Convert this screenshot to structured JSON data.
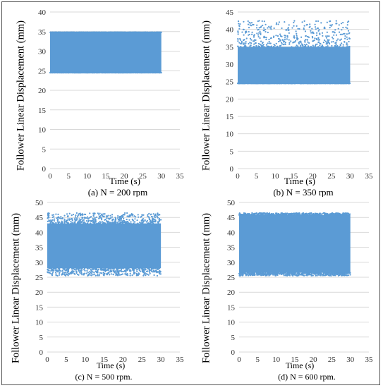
{
  "figure": {
    "colors": {
      "series": "#5b9bd5",
      "grid": "#d9d9d9",
      "text": "#333333"
    }
  },
  "chart_data": [
    {
      "type": "scatter",
      "panel_id": "a",
      "caption": "(a) N = 200 rpm",
      "xlabel": "Time (s)",
      "ylabel": "Follower Linear Displacement (mm)",
      "xlim": [
        0,
        35
      ],
      "ylim": [
        0,
        40
      ],
      "xticks": [
        0,
        5,
        10,
        15,
        20,
        25,
        30,
        35
      ],
      "yticks": [
        0,
        5,
        10,
        15,
        20,
        25,
        30,
        35,
        40
      ],
      "grid": true,
      "series": [
        {
          "x_range": [
            0,
            30
          ],
          "y_min": 24.5,
          "y_max": 34.8
        }
      ]
    },
    {
      "type": "scatter",
      "panel_id": "b",
      "caption": "(b) N = 350 rpm",
      "xlabel": "Time (s)",
      "ylabel": "Follower Linear Displacement (mm)",
      "xlim": [
        0,
        35
      ],
      "ylim": [
        0,
        45
      ],
      "xticks": [
        0,
        5,
        10,
        15,
        20,
        25,
        30,
        35
      ],
      "yticks": [
        0,
        5,
        10,
        15,
        20,
        25,
        30,
        35,
        40,
        45
      ],
      "grid": true,
      "series": [
        {
          "x_range": [
            0,
            30
          ],
          "y_min": 24.5,
          "y_max": 42.5,
          "dense_top": 35
        }
      ]
    },
    {
      "type": "scatter",
      "panel_id": "c",
      "caption": "(c) N = 500 rpm.",
      "xlabel": "Time (s)",
      "ylabel": "Follower Linear Displacement (mm)",
      "xlim": [
        0,
        35
      ],
      "ylim": [
        0,
        50
      ],
      "xticks": [
        0,
        5,
        10,
        15,
        20,
        25,
        30,
        35
      ],
      "yticks": [
        0,
        5,
        10,
        15,
        20,
        25,
        30,
        35,
        40,
        45,
        50
      ],
      "grid": true,
      "series": [
        {
          "x_range": [
            0,
            30
          ],
          "y_min": 25.5,
          "y_max": 46.5,
          "dense_bottom": 28,
          "dense_top": 43
        }
      ]
    },
    {
      "type": "scatter",
      "panel_id": "d",
      "caption": "(d) N = 600 rpm.",
      "xlabel": "Time (s)",
      "ylabel": "Follower Linear Displacement (mm)",
      "xlim": [
        0,
        35
      ],
      "ylim": [
        0,
        50
      ],
      "xticks": [
        0,
        5,
        10,
        15,
        20,
        25,
        30,
        35
      ],
      "yticks": [
        0,
        5,
        10,
        15,
        20,
        25,
        30,
        35,
        40,
        45,
        50
      ],
      "grid": true,
      "series": [
        {
          "x_range": [
            0,
            30
          ],
          "y_min": 25.5,
          "y_max": 46.5,
          "dense_bottom": 26.5,
          "dense_top": 45.8
        }
      ]
    }
  ]
}
